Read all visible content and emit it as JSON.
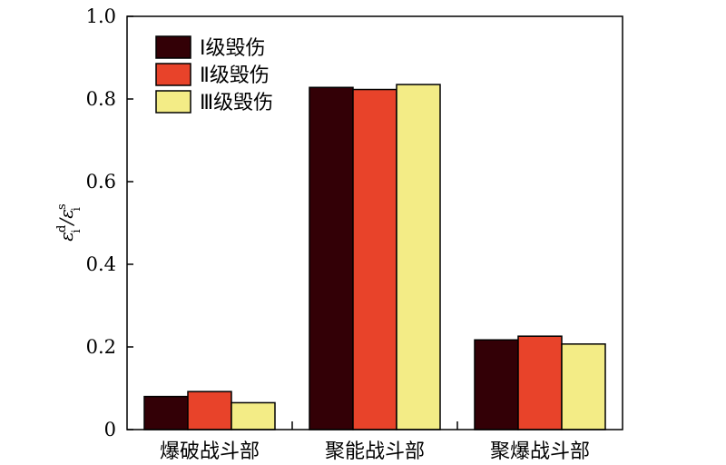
{
  "chart_data": {
    "type": "bar",
    "categories": [
      "爆破战斗部",
      "聚能战斗部",
      "聚爆战斗部"
    ],
    "series": [
      {
        "name": "Ⅰ级毁伤",
        "color": "#330006",
        "values": [
          0.08,
          0.828,
          0.217
        ]
      },
      {
        "name": "Ⅱ级毁伤",
        "color": "#e8432a",
        "values": [
          0.092,
          0.823,
          0.226
        ]
      },
      {
        "name": "Ⅲ级毁伤",
        "color": "#f3ec86",
        "values": [
          0.065,
          0.835,
          0.207
        ]
      }
    ],
    "ylim": [
      0,
      1.0
    ],
    "yticks": [
      "0",
      "0.2",
      "0.4",
      "0.6",
      "0.8",
      "1.0"
    ],
    "ylabel": {
      "base1": "ε",
      "sub1": "i",
      "sup1": "d",
      "slash": "/",
      "base2": "ε",
      "sub2": "i",
      "sup2": "s"
    },
    "legend_position": "top-left",
    "grid": false
  }
}
